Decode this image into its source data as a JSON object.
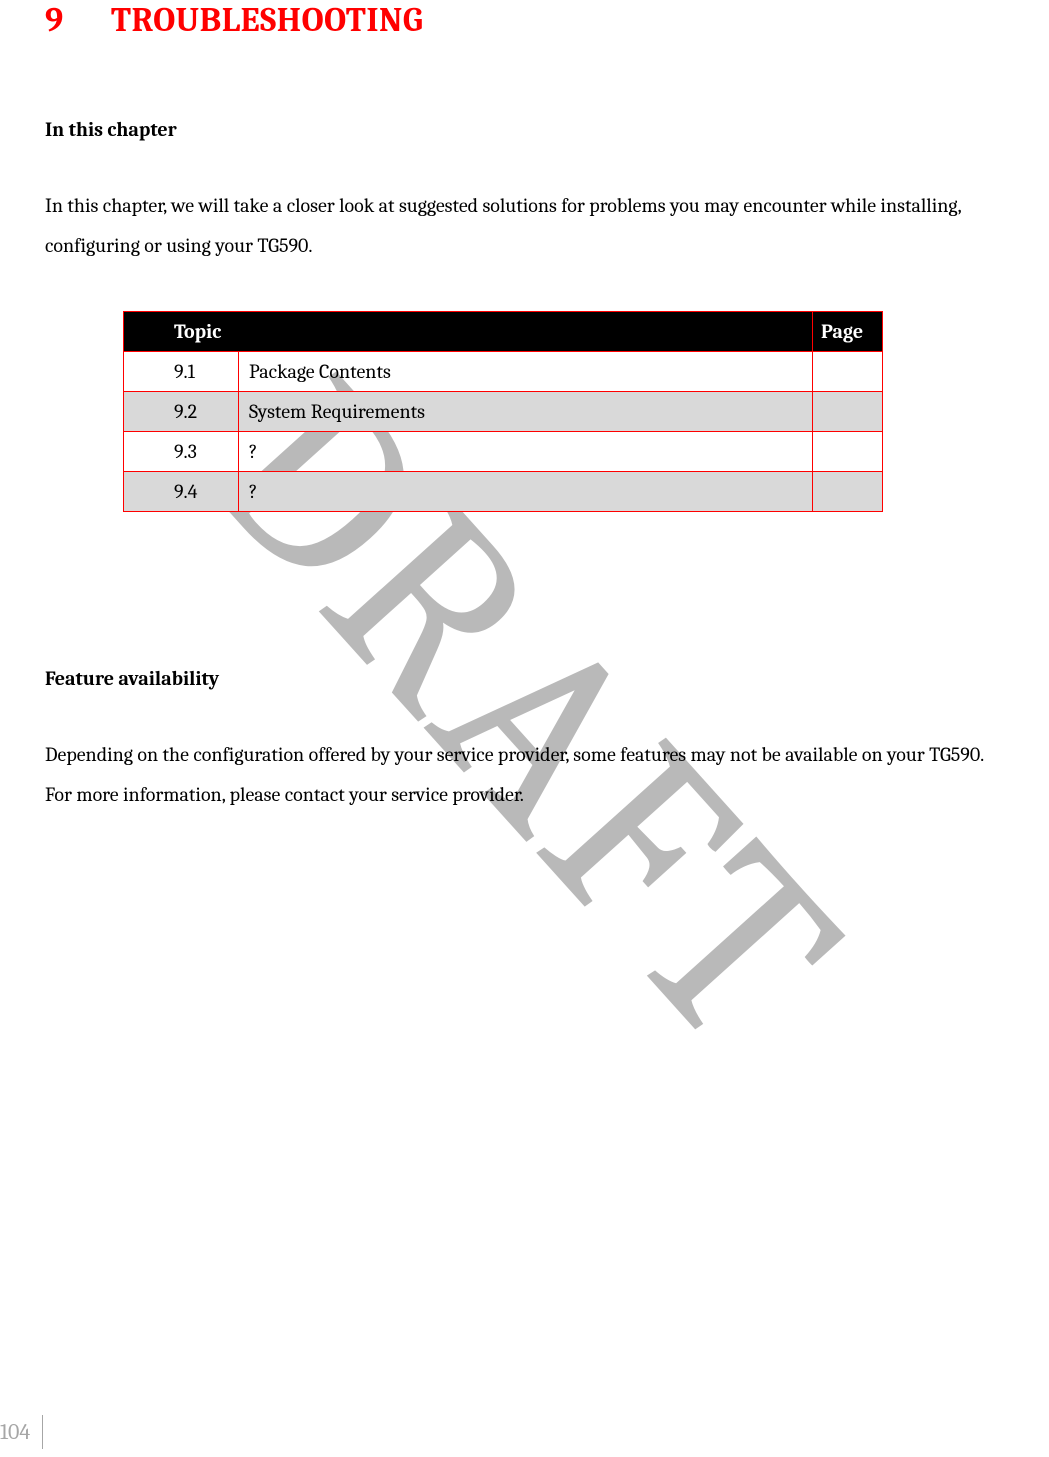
{
  "watermark_text": "DRAFT",
  "chapter": {
    "number": "9",
    "title": "TROUBLESHOOTING",
    "title_color": "#ff0000",
    "title_fontsize": 34
  },
  "section1": {
    "heading": "In this chapter",
    "paragraph": "In this chapter, we will take a closer look at suggested solutions for problems you may encounter while installing, configuring or using your TG590."
  },
  "topic_table": {
    "columns": [
      "Topic",
      "Page"
    ],
    "header_bg": "#000000",
    "header_fg": "#ffffff",
    "border_color": "#ff0000",
    "alt_row_bg": "#d9d9d9",
    "rows": [
      {
        "num": "9.1",
        "topic": "Package Contents",
        "page": ""
      },
      {
        "num": "9.2",
        "topic": "System Requirements",
        "page": ""
      },
      {
        "num": "9.3",
        "topic": "?",
        "page": ""
      },
      {
        "num": "9.4",
        "topic": "?",
        "page": ""
      }
    ]
  },
  "section2": {
    "heading": "Feature availability",
    "paragraph": "Depending on the configuration offered by your service provider, some features may not be available on your TG590. For more information, please contact your service provider."
  },
  "footer": {
    "page_number": "104",
    "page_color": "#a6a6a6"
  }
}
